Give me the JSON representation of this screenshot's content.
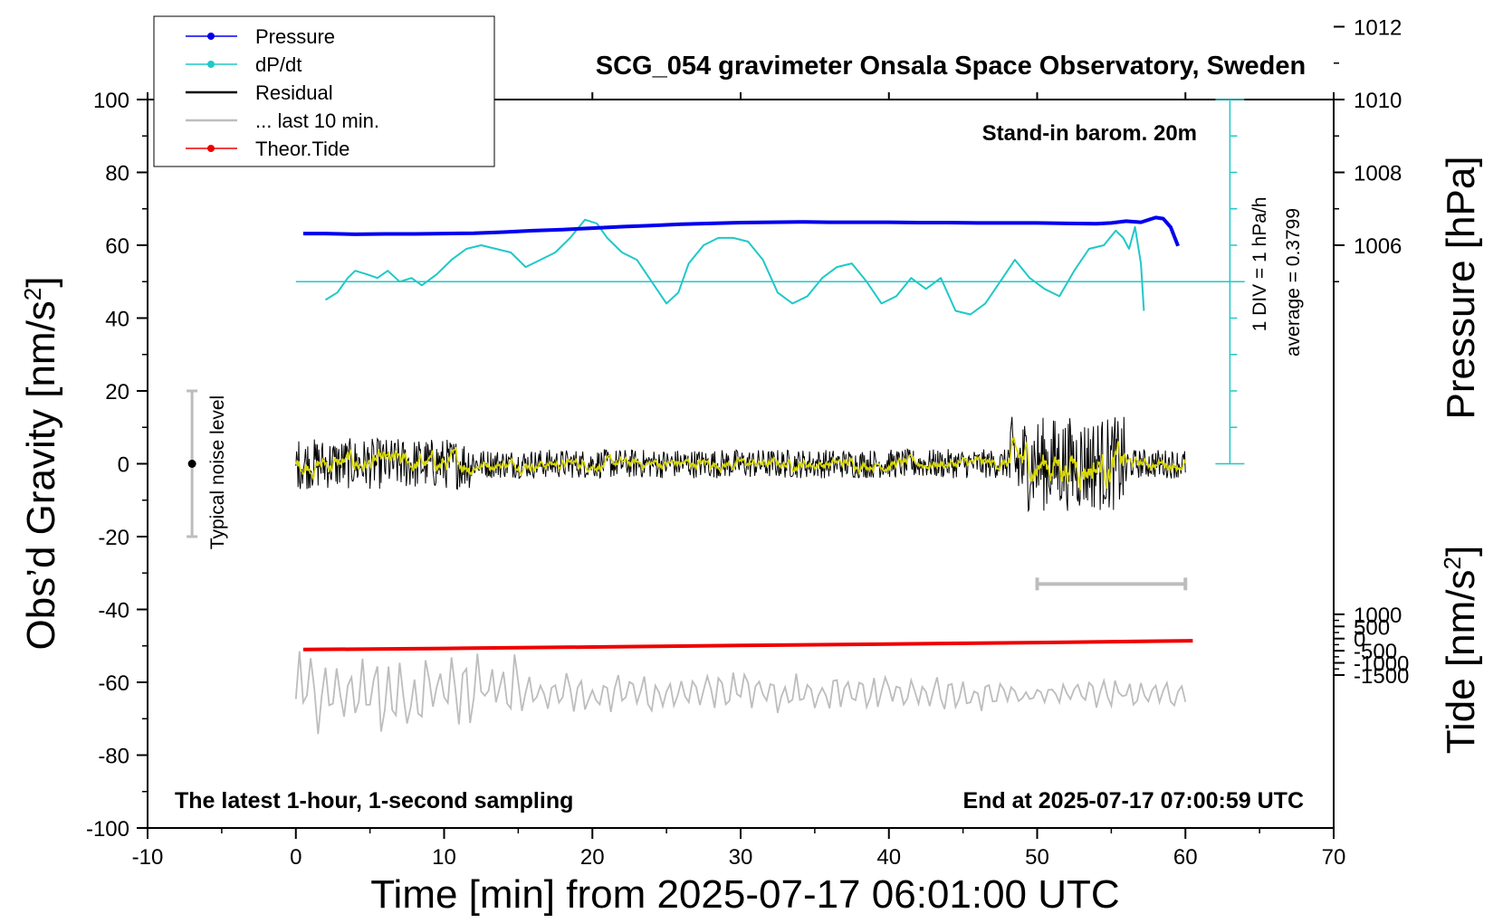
{
  "chart_data": {
    "type": "line",
    "title": "SCG_054 gravimeter Onsala Space Observatory, Sweden",
    "xlabel": "Time [min] from 2025-07-17 06:01:00 UTC",
    "ylabel_left": "Obs’d Gravity [nm/s",
    "ylabel_left_sup": "2",
    "ylabel_left_close": "]",
    "ylabel_right_pressure": "Pressure [hPa]",
    "ylabel_right_tide": "Tide [nm/s",
    "ylabel_right_tide_sup": "2",
    "ylabel_right_tide_close": "]",
    "xlim": [
      -10,
      70
    ],
    "ylim_left": [
      -100,
      100
    ],
    "x_ticks": [
      -10,
      0,
      10,
      20,
      30,
      40,
      50,
      60,
      70
    ],
    "y_ticks_left": [
      -100,
      -80,
      -60,
      -40,
      -20,
      0,
      20,
      40,
      60,
      80,
      100
    ],
    "pressure_ticks": [
      1006,
      1008,
      1010,
      1012
    ],
    "pressure_axis": {
      "value_at_gravity_zero": 1000,
      "hpa_per_gravity_unit": 0.1
    },
    "tide_ticks": [
      -1500,
      -1000,
      -500,
      0,
      500,
      1000
    ],
    "tide_axis": {
      "value_at_gravity_zero": 7200,
      "nms2_per_gravity_unit": 150
    },
    "annotations": {
      "stand_in": "Stand-in barom. 20m",
      "latest": "The latest 1-hour, 1-second sampling",
      "end_at": "End at 2025-07-17 07:00:59 UTC",
      "div_note": "1 DIV = 1 hPa/h",
      "average": "average = 0.3799",
      "noise": "Typical noise level"
    },
    "noise_bar": {
      "x": -7,
      "center": 0,
      "half_range": 20
    },
    "ten_min_bar": {
      "x_start": 50,
      "x_end": 60,
      "y": -33
    },
    "dpdt_baseline": 50,
    "dpdt_scale": {
      "x": 63,
      "y_min": 0,
      "y_max": 100
    },
    "legend": {
      "placement": "top-left",
      "entries": [
        {
          "label": "Pressure",
          "color": "#0000ee",
          "marker": "dot"
        },
        {
          "label": "dP/dt",
          "color": "#20c8c8",
          "marker": "dot"
        },
        {
          "label": "Residual",
          "color": "#000000",
          "marker": "line"
        },
        {
          "label": "... last 10 min.",
          "color": "#bdbdbd",
          "marker": "line"
        },
        {
          "label": "Theor.Tide",
          "color": "#ee0000",
          "marker": "dot"
        }
      ]
    },
    "series": [
      {
        "name": "Pressure",
        "color": "#0000ee",
        "x": [
          0.5,
          2,
          4,
          6,
          8,
          10,
          12,
          14,
          16,
          18,
          20,
          22,
          24,
          26,
          28,
          30,
          32,
          34,
          36,
          38,
          40,
          42,
          44,
          46,
          48,
          50,
          52,
          54,
          55,
          56,
          57,
          58,
          58.5,
          59,
          59.5
        ],
        "values": [
          63.2,
          63.2,
          63.0,
          63.1,
          63.1,
          63.2,
          63.3,
          63.6,
          64.0,
          64.3,
          64.7,
          65.1,
          65.4,
          65.8,
          66.0,
          66.2,
          66.3,
          66.4,
          66.3,
          66.3,
          66.3,
          66.2,
          66.2,
          66.1,
          66.1,
          66.1,
          66.0,
          65.9,
          66.1,
          66.6,
          66.3,
          67.6,
          67.3,
          65.0,
          59.8
        ]
      },
      {
        "name": "dP/dt",
        "color": "#20c8c8",
        "x": [
          2,
          2.8,
          3.5,
          4,
          4.8,
          5.5,
          6.2,
          7,
          7.8,
          8.5,
          9.5,
          10.5,
          11.5,
          12.5,
          13.5,
          14.5,
          15.5,
          16.5,
          17.5,
          18.5,
          19.5,
          20.3,
          21,
          22,
          23,
          24,
          25,
          25.8,
          26.5,
          27.5,
          28.5,
          29.5,
          30.5,
          31.5,
          32.5,
          33.5,
          34.5,
          35.5,
          36.5,
          37.5,
          38.5,
          39.5,
          40.5,
          41.5,
          42.5,
          43.5,
          44.5,
          45.5,
          46.5,
          47.5,
          48.5,
          49.5,
          50.5,
          51.5,
          52.5,
          53.5,
          54.5,
          55.3,
          55.8,
          56.2,
          56.6,
          57,
          57.2
        ],
        "values": [
          45,
          47,
          51,
          53,
          52,
          51,
          53,
          50,
          51,
          49,
          52,
          56,
          59,
          60,
          59,
          58,
          54,
          56,
          58,
          62,
          67,
          66,
          62,
          58,
          56,
          50,
          44,
          47,
          55,
          60,
          62,
          62,
          61,
          56,
          47,
          44,
          46,
          51,
          54,
          55,
          50,
          44,
          46,
          51,
          48,
          51,
          42,
          41,
          44,
          50,
          56,
          51,
          48,
          46,
          53,
          59,
          60,
          64,
          62,
          59,
          65,
          55,
          42
        ]
      },
      {
        "name": "Residual",
        "color": "#000000",
        "x_range": [
          0,
          60
        ],
        "step_min": 0.05,
        "amplitude_min": 4,
        "amplitude_max": 13
      },
      {
        "name": "... last 10 min.",
        "color": "#bdbdbd",
        "x_range": [
          0,
          60
        ],
        "step_min": 0.25,
        "center": -63,
        "amplitude_min": 3,
        "amplitude_max": 10
      },
      {
        "name": "Theor.Tide",
        "color": "#ee0000",
        "x": [
          0.5,
          10,
          20,
          30,
          40,
          50,
          60.5
        ],
        "values": [
          -51.0,
          -50.7,
          -50.3,
          -49.9,
          -49.5,
          -49.1,
          -48.6
        ]
      }
    ]
  }
}
